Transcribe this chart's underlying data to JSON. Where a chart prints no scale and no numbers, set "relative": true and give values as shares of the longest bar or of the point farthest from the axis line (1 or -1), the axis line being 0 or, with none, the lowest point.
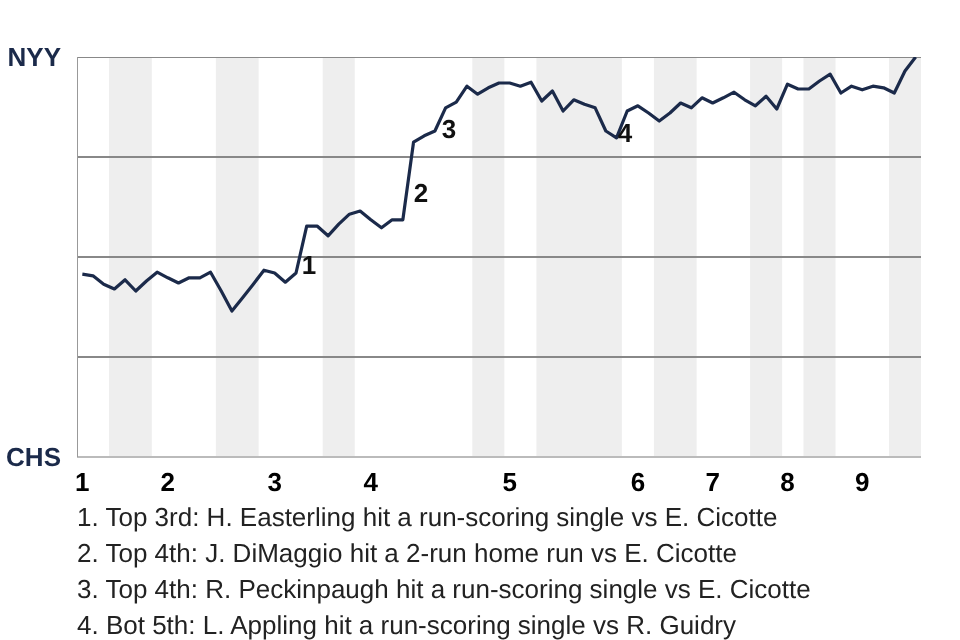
{
  "chart_data": {
    "type": "line",
    "relative": true,
    "marker": "none",
    "line_style": "solid",
    "categories": [
      "1",
      null,
      null,
      null,
      null,
      null,
      null,
      null,
      "2",
      null,
      null,
      null,
      null,
      null,
      null,
      null,
      null,
      null,
      "3",
      null,
      null,
      null,
      null,
      null,
      null,
      null,
      null,
      "4",
      null,
      null,
      null,
      null,
      null,
      null,
      null,
      null,
      null,
      null,
      null,
      null,
      "5",
      null,
      null,
      null,
      null,
      null,
      null,
      null,
      null,
      null,
      null,
      null,
      "6",
      null,
      null,
      null,
      null,
      null,
      null,
      "7",
      null,
      null,
      null,
      null,
      null,
      null,
      "8",
      null,
      null,
      null,
      null,
      null,
      null,
      "9",
      null,
      null,
      null,
      null,
      null
    ],
    "series": [
      {
        "color": "#1b2a4a",
        "values": [
          0.457,
          0.453,
          0.432,
          0.42,
          0.443,
          0.415,
          0.44,
          0.462,
          0.448,
          0.435,
          0.448,
          0.448,
          0.462,
          0.415,
          0.365,
          0.398,
          0.432,
          0.467,
          0.46,
          0.437,
          0.46,
          0.577,
          0.577,
          0.553,
          0.582,
          0.607,
          0.615,
          0.593,
          0.573,
          0.593,
          0.593,
          0.787,
          0.803,
          0.815,
          0.873,
          0.887,
          0.927,
          0.907,
          0.923,
          0.935,
          0.935,
          0.927,
          0.937,
          0.89,
          0.915,
          0.865,
          0.893,
          0.882,
          0.873,
          0.815,
          0.798,
          0.865,
          0.878,
          0.86,
          0.84,
          0.86,
          0.885,
          0.873,
          0.898,
          0.885,
          0.898,
          0.912,
          0.893,
          0.878,
          0.902,
          0.87,
          0.932,
          0.92,
          0.92,
          0.94,
          0.957,
          0.91,
          0.927,
          0.918,
          0.927,
          0.923,
          0.91,
          0.965,
          1
        ]
      }
    ],
    "ref_lines": [
      {
        "axis": "y",
        "value": 0.25,
        "color": "#888888"
      },
      {
        "axis": "y",
        "value": 0.5,
        "color": "#888888"
      },
      {
        "axis": "y",
        "value": 0.75,
        "color": "#888888"
      },
      {
        "axis": "y",
        "value": 1,
        "color": "#888888"
      }
    ],
    "annotations": [
      "NYY",
      "CHS",
      "1",
      "2",
      "3",
      "4",
      "1. Top 3rd: H. Easterling hit a run-scoring single vs E. Cicotte",
      "2. Top 4th: J. DiMaggio hit a 2-run home run vs E. Cicotte",
      "3. Top 4th: R. Peckinpaugh hit a run-scoring single vs E. Cicotte",
      "4. Bot 5th: L. Appling hit a run-scoring single vs R. Guidry"
    ]
  }
}
